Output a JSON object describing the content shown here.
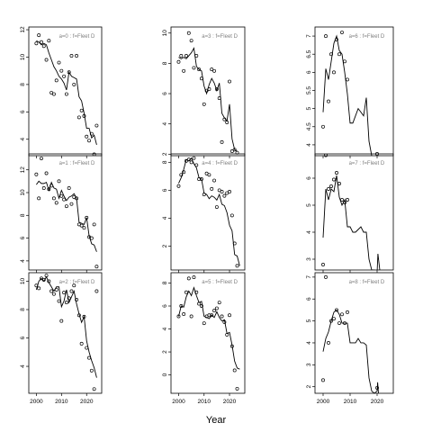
{
  "chart_data": {
    "type": "line",
    "xlabel": "Year",
    "layout": "3x3 grid, columns left to right, rows top to bottom",
    "x_ticks": [
      2000,
      2010,
      2020
    ],
    "panels": [
      {
        "title": "a=0  :  f=Fleet D",
        "xlim": [
          1997,
          2026
        ],
        "ylim": [
          2.8,
          12.2
        ],
        "yticks": [
          4,
          6,
          8,
          10,
          12
        ],
        "xticks": [
          2000,
          2010,
          2020
        ],
        "obs_x": [
          2000,
          2001,
          2002,
          2003,
          2004,
          2005,
          2006,
          2007,
          2008,
          2009,
          2010,
          2011,
          2012,
          2013,
          2014,
          2015,
          2016,
          2017,
          2018,
          2019,
          2020,
          2021,
          2022,
          2023,
          2024
        ],
        "obs_y": [
          11.0,
          11.6,
          11.1,
          10.8,
          9.8,
          11.2,
          7.4,
          7.3,
          8.3,
          9.6,
          9.0,
          8.6,
          7.3,
          8.9,
          10.1,
          8.0,
          10.1,
          5.6,
          6.1,
          5.7,
          4.2,
          3.9,
          4.4,
          2.9,
          5.0
        ],
        "fit_x": [
          2000,
          2001,
          2002,
          2003,
          2004,
          2005,
          2006,
          2007,
          2008,
          2009,
          2010,
          2011,
          2012,
          2013,
          2014,
          2015,
          2016,
          2017,
          2018,
          2019,
          2020,
          2021,
          2022,
          2023,
          2024
        ],
        "fit_y": [
          11.2,
          11.1,
          10.9,
          11.0,
          10.9,
          10.3,
          9.8,
          9.3,
          9.0,
          8.6,
          8.4,
          8.1,
          7.6,
          8.9,
          8.6,
          8.5,
          8.4,
          7.1,
          6.8,
          5.9,
          4.8,
          4.8,
          4.1,
          4.3,
          3.6
        ]
      },
      {
        "title": "a=1  :  f=Fleet D",
        "xlim": [
          1997,
          2026
        ],
        "ylim": [
          3.2,
          13.4
        ],
        "yticks": [
          4,
          6,
          8,
          10,
          12
        ],
        "xticks": [
          2000,
          2010,
          2020
        ],
        "obs_x": [
          2000,
          2001,
          2002,
          2003,
          2004,
          2005,
          2006,
          2007,
          2008,
          2009,
          2010,
          2011,
          2012,
          2013,
          2014,
          2015,
          2016,
          2017,
          2018,
          2019,
          2020,
          2021,
          2022,
          2023,
          2024
        ],
        "obs_y": [
          11.6,
          9.5,
          13.0,
          10.4,
          11.7,
          10.3,
          10.6,
          9.5,
          9.1,
          11.0,
          9.7,
          9.4,
          8.8,
          10.4,
          9.0,
          9.6,
          9.5,
          7.2,
          7.1,
          6.9,
          7.8,
          6.1,
          6.0,
          7.2,
          3.5
        ],
        "fit_x": [
          2000,
          2001,
          2002,
          2003,
          2004,
          2005,
          2006,
          2007,
          2008,
          2009,
          2010,
          2011,
          2012,
          2013,
          2014,
          2015,
          2016,
          2017,
          2018,
          2019,
          2020,
          2021,
          2022,
          2023,
          2024
        ],
        "fit_y": [
          10.7,
          11.0,
          10.8,
          10.8,
          10.9,
          10.2,
          10.9,
          10.4,
          10.3,
          9.5,
          10.2,
          9.7,
          9.3,
          9.6,
          9.7,
          9.9,
          9.5,
          7.4,
          7.3,
          7.2,
          7.8,
          6.2,
          5.5,
          5.4,
          4.8
        ]
      },
      {
        "title": "a=2  :  f=Fleet D",
        "xlim": [
          1997,
          2026
        ],
        "ylim": [
          2.1,
          10.6
        ],
        "yticks": [
          4,
          6,
          8,
          10
        ],
        "xticks": [
          2000,
          2010,
          2020
        ],
        "obs_x": [
          2000,
          2001,
          2002,
          2003,
          2004,
          2005,
          2006,
          2007,
          2008,
          2009,
          2010,
          2011,
          2012,
          2013,
          2014,
          2015,
          2016,
          2017,
          2018,
          2019,
          2020,
          2021,
          2022,
          2023,
          2024
        ],
        "obs_y": [
          9.7,
          9.5,
          10.2,
          10.1,
          10.4,
          10.0,
          9.3,
          9.1,
          9.4,
          8.6,
          7.2,
          9.2,
          8.5,
          8.8,
          9.3,
          9.7,
          8.7,
          7.6,
          5.6,
          7.5,
          5.3,
          4.6,
          3.7,
          2.4,
          9.3
        ],
        "fit_x": [
          2000,
          2001,
          2002,
          2003,
          2004,
          2005,
          2006,
          2007,
          2008,
          2009,
          2010,
          2011,
          2012,
          2013,
          2014,
          2015,
          2016,
          2017,
          2018,
          2019,
          2020,
          2021,
          2022,
          2023,
          2024
        ],
        "fit_y": [
          9.4,
          10.0,
          10.2,
          10.0,
          10.3,
          9.9,
          9.6,
          9.3,
          9.6,
          9.6,
          8.2,
          8.6,
          9.4,
          8.5,
          8.9,
          9.3,
          8.4,
          7.7,
          7.1,
          7.5,
          5.8,
          5.0,
          4.4,
          3.9,
          3.2
        ]
      },
      {
        "title": "a=3  :  f=Fleet D",
        "xlim": [
          1997,
          2026
        ],
        "ylim": [
          1.9,
          10.4
        ],
        "yticks": [
          2,
          4,
          6,
          8,
          10
        ],
        "xticks": [
          2000,
          2010,
          2020
        ],
        "obs_x": [
          2000,
          2001,
          2002,
          2003,
          2004,
          2005,
          2006,
          2007,
          2008,
          2009,
          2010,
          2011,
          2012,
          2013,
          2014,
          2015,
          2016,
          2017,
          2018,
          2019,
          2020,
          2021,
          2022,
          2023
        ],
        "obs_y": [
          8.1,
          8.5,
          7.5,
          8.5,
          10.0,
          9.5,
          7.7,
          8.5,
          7.6,
          7.0,
          5.3,
          6.2,
          6.3,
          7.6,
          7.5,
          6.3,
          5.7,
          2.8,
          4.3,
          4.1,
          6.8,
          2.2,
          2.3,
          2.1
        ],
        "fit_x": [
          2000,
          2001,
          2002,
          2003,
          2004,
          2005,
          2006,
          2007,
          2008,
          2009,
          2010,
          2011,
          2012,
          2013,
          2014,
          2015,
          2016,
          2017,
          2018,
          2019,
          2020,
          2021,
          2022,
          2023
        ],
        "fit_y": [
          8.4,
          8.3,
          8.4,
          8.3,
          8.5,
          8.7,
          9.0,
          7.8,
          7.6,
          7.5,
          6.5,
          6.0,
          6.6,
          7.0,
          6.7,
          6.2,
          6.7,
          4.7,
          4.4,
          4.2,
          5.3,
          3.0,
          2.3,
          2.2
        ]
      },
      {
        "title": "a=4  :  f=Fleet D",
        "xlim": [
          1997,
          2026
        ],
        "ylim": [
          0.3,
          8.6
        ],
        "yticks": [
          2,
          4,
          6,
          8
        ],
        "xticks": [
          2000,
          2010,
          2020
        ],
        "obs_x": [
          2000,
          2001,
          2002,
          2003,
          2004,
          2005,
          2006,
          2007,
          2008,
          2009,
          2010,
          2011,
          2012,
          2013,
          2014,
          2015,
          2016,
          2017,
          2018,
          2019,
          2020,
          2021,
          2022,
          2023
        ],
        "obs_y": [
          6.3,
          7.1,
          7.3,
          8.1,
          8.2,
          8.0,
          8.3,
          7.8,
          6.8,
          6.8,
          5.7,
          7.2,
          7.1,
          6.1,
          6.7,
          4.8,
          6.0,
          5.9,
          5.6,
          5.8,
          5.9,
          4.2,
          2.2,
          0.6
        ],
        "fit_x": [
          2000,
          2001,
          2002,
          2003,
          2004,
          2005,
          2006,
          2007,
          2008,
          2009,
          2010,
          2011,
          2012,
          2013,
          2014,
          2015,
          2016,
          2017,
          2018,
          2019,
          2020,
          2021,
          2022,
          2023,
          2024
        ],
        "fit_y": [
          6.5,
          6.9,
          7.5,
          8.2,
          8.1,
          8.3,
          7.9,
          7.6,
          6.9,
          6.8,
          5.8,
          5.7,
          5.4,
          5.6,
          5.5,
          5.3,
          5.7,
          5.0,
          4.9,
          4.4,
          3.5,
          3.1,
          1.4,
          1.3,
          0.6
        ]
      },
      {
        "title": "a=5  :  f=Fleet D",
        "xlim": [
          1997,
          2026
        ],
        "ylim": [
          -1.6,
          8.9
        ],
        "yticks": [
          0,
          2,
          4,
          6,
          8
        ],
        "xticks": [
          2000,
          2010,
          2020
        ],
        "obs_x": [
          2000,
          2001,
          2002,
          2003,
          2004,
          2005,
          2006,
          2007,
          2008,
          2009,
          2010,
          2011,
          2012,
          2013,
          2014,
          2015,
          2016,
          2017,
          2018,
          2019,
          2020,
          2021,
          2022,
          2023
        ],
        "obs_y": [
          5.1,
          6.0,
          5.3,
          7.2,
          8.4,
          5.1,
          8.5,
          7.2,
          6.2,
          6.0,
          4.5,
          5.1,
          5.2,
          5.2,
          5.6,
          5.8,
          6.3,
          5.1,
          4.6,
          3.5,
          5.2,
          2.5,
          0.4,
          -1.2
        ],
        "fit_x": [
          2000,
          2001,
          2002,
          2003,
          2004,
          2005,
          2006,
          2007,
          2008,
          2009,
          2010,
          2011,
          2012,
          2013,
          2014,
          2015,
          2016,
          2017,
          2018,
          2019,
          2020,
          2021,
          2022,
          2023,
          2024
        ],
        "fit_y": [
          5.1,
          6.0,
          5.9,
          6.8,
          7.3,
          6.9,
          7.6,
          6.9,
          6.3,
          6.4,
          5.1,
          5.0,
          4.9,
          5.2,
          5.0,
          5.5,
          5.0,
          4.7,
          4.8,
          3.6,
          3.7,
          2.6,
          1.2,
          0.6,
          0.5
        ]
      },
      {
        "title": "a=6  :  f=Fleet D",
        "xlim": [
          1997,
          2026
        ],
        "ylim": [
          3.7,
          7.25
        ],
        "yticks": [
          4.0,
          4.5,
          5.0,
          5.5,
          6.0,
          6.5,
          7.0
        ],
        "xticks": [
          2000,
          2010,
          2020
        ],
        "obs_x": [
          2000,
          2001,
          2002,
          2003,
          2004,
          2005,
          2006,
          2007,
          2008,
          2009,
          2020
        ],
        "obs_y": [
          4.5,
          7.0,
          5.2,
          6.5,
          6.0,
          6.9,
          6.5,
          7.1,
          6.3,
          5.8,
          3.75
        ],
        "fit_x": [
          2000,
          2001,
          2002,
          2003,
          2004,
          2005,
          2006,
          2007,
          2008,
          2009,
          2010,
          2011,
          2012,
          2013,
          2014,
          2015,
          2016,
          2017,
          2018
        ],
        "fit_y": [
          4.9,
          6.1,
          5.8,
          6.3,
          6.8,
          7.0,
          6.6,
          6.5,
          6.0,
          5.4,
          4.6,
          4.6,
          4.8,
          5.0,
          4.9,
          4.8,
          5.3,
          4.1,
          3.7
        ]
      },
      {
        "title": "a=7  :  f=Fleet D",
        "xlim": [
          1997,
          2026
        ],
        "ylim": [
          2.6,
          6.9
        ],
        "yticks": [
          3,
          4,
          5,
          6
        ],
        "xticks": [
          2000,
          2010,
          2020
        ],
        "obs_x": [
          2000,
          2001,
          2002,
          2003,
          2004,
          2005,
          2006,
          2007,
          2008,
          2009
        ],
        "obs_y": [
          2.8,
          6.85,
          5.6,
          5.7,
          5.95,
          6.2,
          5.8,
          5.2,
          5.1,
          5.2
        ],
        "fit_x": [
          2000,
          2001,
          2002,
          2003,
          2004,
          2005,
          2006,
          2007,
          2008,
          2009,
          2010,
          2011,
          2012,
          2013,
          2014,
          2015,
          2016,
          2017,
          2018,
          2019,
          2020,
          2020.3,
          2021
        ],
        "fit_y": [
          3.8,
          5.6,
          5.2,
          5.6,
          5.5,
          6.1,
          5.3,
          5.0,
          5.2,
          4.2,
          4.2,
          4.0,
          4.0,
          4.1,
          4.2,
          4.0,
          4.0,
          3.0,
          2.6,
          2.6,
          2.5,
          3.2,
          2.6
        ]
      },
      {
        "title": "a=8  :  f=Fleet D",
        "xlim": [
          1997,
          2026
        ],
        "ylim": [
          1.7,
          7.2
        ],
        "yticks": [
          2,
          3,
          4,
          5,
          6,
          7
        ],
        "xticks": [
          2000,
          2010,
          2020
        ],
        "obs_x": [
          2000,
          2001,
          2002,
          2003,
          2004,
          2005,
          2006,
          2007,
          2008,
          2009,
          2020
        ],
        "obs_y": [
          2.3,
          7.0,
          4.0,
          5.0,
          5.1,
          5.5,
          4.9,
          5.3,
          4.9,
          5.4,
          1.95
        ],
        "fit_x": [
          2000,
          2001,
          2002,
          2003,
          2004,
          2005,
          2006,
          2007,
          2008,
          2009,
          2010,
          2011,
          2012,
          2013,
          2014,
          2015,
          2016,
          2017,
          2018,
          2019,
          2020,
          2020.2,
          2020.5
        ],
        "fit_y": [
          3.6,
          4.2,
          4.5,
          5.0,
          5.4,
          5.5,
          5.3,
          4.9,
          4.9,
          4.9,
          4.0,
          4.0,
          4.0,
          4.2,
          4.0,
          4.0,
          3.9,
          2.4,
          1.8,
          1.7,
          1.8,
          2.2,
          1.7
        ]
      }
    ]
  }
}
